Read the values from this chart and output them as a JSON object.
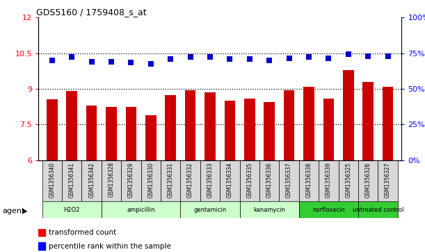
{
  "title": "GDS5160 / 1759408_s_at",
  "samples": [
    "GSM1356340",
    "GSM1356341",
    "GSM1356342",
    "GSM1356328",
    "GSM1356329",
    "GSM1356330",
    "GSM1356331",
    "GSM1356332",
    "GSM1356333",
    "GSM1356334",
    "GSM1356335",
    "GSM1356336",
    "GSM1356337",
    "GSM1356338",
    "GSM1356339",
    "GSM1356325",
    "GSM1356326",
    "GSM1356327"
  ],
  "transformed_count": [
    8.55,
    8.9,
    8.3,
    8.25,
    8.25,
    7.9,
    8.75,
    8.95,
    8.85,
    8.5,
    8.6,
    8.45,
    8.95,
    9.1,
    8.6,
    9.8,
    9.3,
    9.1
  ],
  "percentile_rank_left": [
    10.2,
    10.35,
    10.15,
    10.15,
    10.1,
    10.05,
    10.25,
    10.35,
    10.35,
    10.25,
    10.25,
    10.2,
    10.3,
    10.35,
    10.3,
    10.45,
    10.38,
    10.38
  ],
  "groups": [
    {
      "label": "H2O2",
      "start": 0,
      "end": 2,
      "color": "#ccffcc"
    },
    {
      "label": "ampicillin",
      "start": 3,
      "end": 6,
      "color": "#ccffcc"
    },
    {
      "label": "gentamicin",
      "start": 7,
      "end": 9,
      "color": "#ccffcc"
    },
    {
      "label": "kanamycin",
      "start": 10,
      "end": 12,
      "color": "#ccffcc"
    },
    {
      "label": "norfloxacin",
      "start": 13,
      "end": 15,
      "color": "#33cc33"
    },
    {
      "label": "untreated control",
      "start": 16,
      "end": 17,
      "color": "#33cc33"
    }
  ],
  "ylim_left": [
    6,
    12
  ],
  "ylim_right": [
    0,
    100
  ],
  "yticks_left": [
    6,
    7.5,
    9,
    10.5,
    12
  ],
  "ytick_labels_left": [
    "6",
    "7.5",
    "9",
    "10.5",
    "12"
  ],
  "yticks_right": [
    0,
    25,
    50,
    75,
    100
  ],
  "ytick_labels_right": [
    "0%",
    "25%",
    "50%",
    "75%",
    "100%"
  ],
  "bar_color": "#cc0000",
  "dot_color": "#0000cc",
  "bar_bottom": 6,
  "dotted_lines": [
    7.5,
    9.0,
    10.5
  ],
  "bar_width": 0.55
}
